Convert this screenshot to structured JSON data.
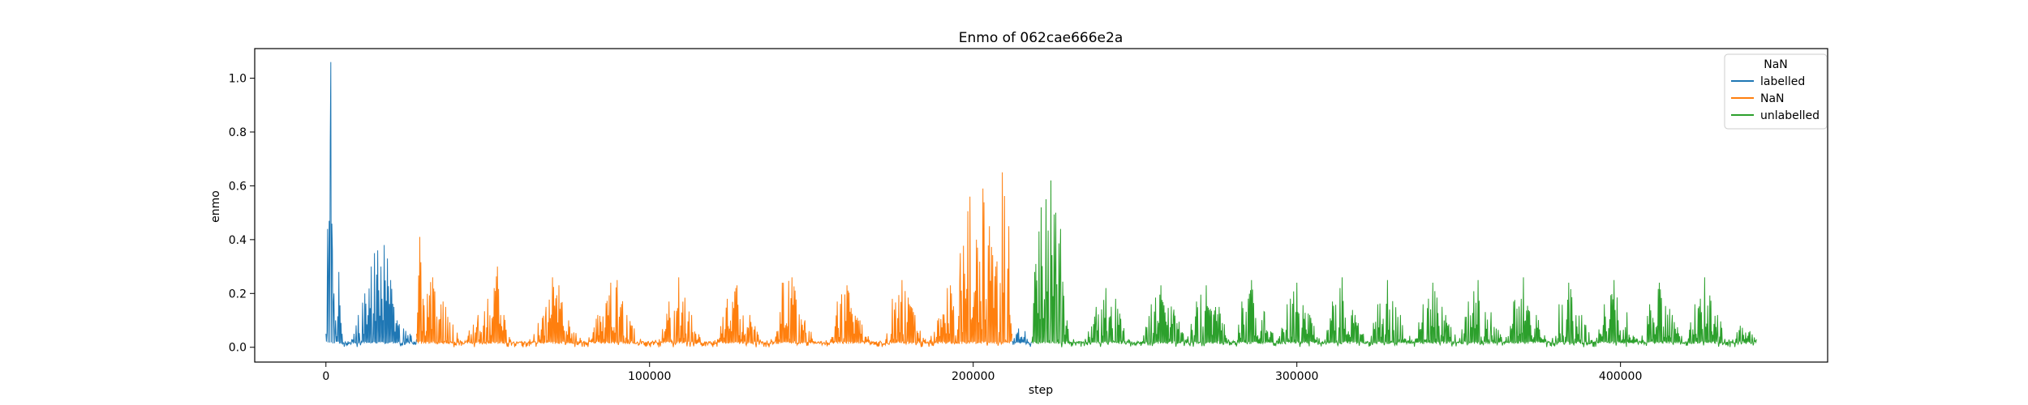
{
  "chart_data": {
    "type": "line",
    "title": "Enmo of 062cae666e2a",
    "xlabel": "step",
    "ylabel": "enmo",
    "xlim": [
      -22000,
      464000
    ],
    "ylim": [
      -0.055,
      1.11
    ],
    "xticks": [
      0,
      100000,
      200000,
      300000,
      400000
    ],
    "xtick_labels": [
      "0",
      "100000",
      "200000",
      "300000",
      "400000"
    ],
    "yticks": [
      0.0,
      0.2,
      0.4,
      0.6,
      0.8,
      1.0
    ],
    "ytick_labels": [
      "0.0",
      "0.2",
      "0.4",
      "0.6",
      "0.8",
      "1.0"
    ],
    "grid": false,
    "legend": {
      "title": "NaN",
      "placement": "top-right",
      "entries": [
        "labelled",
        "NaN",
        "unlabelled"
      ]
    },
    "colors": {
      "labelled": "#1f77b4",
      "NaN": "#ff7f0e",
      "unlabelled": "#2ca02c"
    },
    "series": [
      {
        "name": "labelled",
        "color": "#1f77b4",
        "segments": [
          {
            "x": [
              0,
              500,
              1000,
              1500,
              2000,
              2500,
              3000,
              4000,
              5000,
              6000,
              8000,
              10000,
              12000,
              14000,
              15000,
              16000,
              17000,
              18000,
              19000,
              20000,
              22000,
              24000,
              26000,
              28000
            ],
            "y": [
              0.05,
              0.44,
              0.47,
              1.06,
              0.36,
              0.2,
              0.1,
              0.28,
              0.05,
              0.02,
              0.03,
              0.12,
              0.2,
              0.3,
              0.35,
              0.36,
              0.3,
              0.38,
              0.33,
              0.25,
              0.1,
              0.07,
              0.05,
              0.03
            ]
          },
          {
            "x": [
              212000,
              214000,
              216000,
              218000
            ],
            "y": [
              0.02,
              0.07,
              0.06,
              0.02
            ]
          }
        ]
      },
      {
        "name": "NaN",
        "color": "#ff7f0e",
        "segments": [
          {
            "x": [
              28000,
              29000,
              30000,
              33000,
              37000,
              42000,
              47000,
              50000,
              52000,
              53000,
              55000,
              58000,
              63000,
              68000,
              70000,
              72000,
              75000,
              80000,
              84000,
              88000,
              90000,
              93000,
              98000,
              103000,
              106000,
              109000,
              113000,
              117000,
              121000,
              124000,
              127000,
              131000,
              135000,
              139000,
              141000,
              144000,
              148000,
              152000,
              156000,
              158000,
              161000,
              165000,
              169000,
              173000,
              175000,
              178000,
              182000,
              186000,
              189000,
              192000,
              196000,
              199000,
              201000,
              203000,
              205000,
              207000,
              209000,
              211000,
              212000
            ],
            "y": [
              0.05,
              0.41,
              0.18,
              0.26,
              0.15,
              0.02,
              0.12,
              0.18,
              0.22,
              0.3,
              0.12,
              0.02,
              0.03,
              0.15,
              0.26,
              0.23,
              0.1,
              0.02,
              0.12,
              0.24,
              0.25,
              0.12,
              0.02,
              0.03,
              0.17,
              0.26,
              0.12,
              0.02,
              0.03,
              0.18,
              0.23,
              0.12,
              0.02,
              0.04,
              0.24,
              0.26,
              0.1,
              0.02,
              0.03,
              0.17,
              0.23,
              0.1,
              0.02,
              0.03,
              0.18,
              0.25,
              0.12,
              0.02,
              0.1,
              0.22,
              0.35,
              0.56,
              0.4,
              0.59,
              0.45,
              0.3,
              0.65,
              0.45,
              0.05
            ]
          }
        ]
      },
      {
        "name": "unlabelled",
        "color": "#2ca02c",
        "segments": [
          {
            "x": [
              218000,
              219000,
              221000,
              222500,
              224000,
              225500,
              227000,
              229000,
              231000,
              234000,
              238000,
              241000,
              244000,
              248000,
              252000,
              255000,
              258000,
              262000,
              266000,
              269000,
              272000,
              276000,
              280000,
              283000,
              286000,
              290000,
              294000,
              297000,
              300000,
              304000,
              308000,
              311000,
              314000,
              318000,
              322000,
              325000,
              328000,
              332000,
              336000,
              339000,
              342000,
              346000,
              350000,
              353000,
              356000,
              360000,
              364000,
              367000,
              370000,
              374000,
              378000,
              381000,
              384000,
              388000,
              392000,
              395000,
              398000,
              402000,
              406000,
              409000,
              412000,
              416000,
              420000,
              423000,
              426000,
              430000,
              434000,
              437000,
              440000,
              442000
            ],
            "y": [
              0.02,
              0.28,
              0.52,
              0.55,
              0.62,
              0.5,
              0.44,
              0.1,
              0.03,
              0.02,
              0.15,
              0.22,
              0.18,
              0.03,
              0.02,
              0.16,
              0.23,
              0.14,
              0.03,
              0.17,
              0.23,
              0.15,
              0.02,
              0.17,
              0.25,
              0.13,
              0.02,
              0.16,
              0.24,
              0.12,
              0.02,
              0.17,
              0.26,
              0.12,
              0.02,
              0.16,
              0.25,
              0.12,
              0.02,
              0.16,
              0.24,
              0.12,
              0.02,
              0.17,
              0.25,
              0.13,
              0.02,
              0.17,
              0.26,
              0.12,
              0.02,
              0.16,
              0.24,
              0.12,
              0.02,
              0.16,
              0.25,
              0.13,
              0.02,
              0.16,
              0.24,
              0.12,
              0.02,
              0.16,
              0.26,
              0.12,
              0.02,
              0.08,
              0.06,
              0.03
            ]
          }
        ]
      }
    ]
  }
}
